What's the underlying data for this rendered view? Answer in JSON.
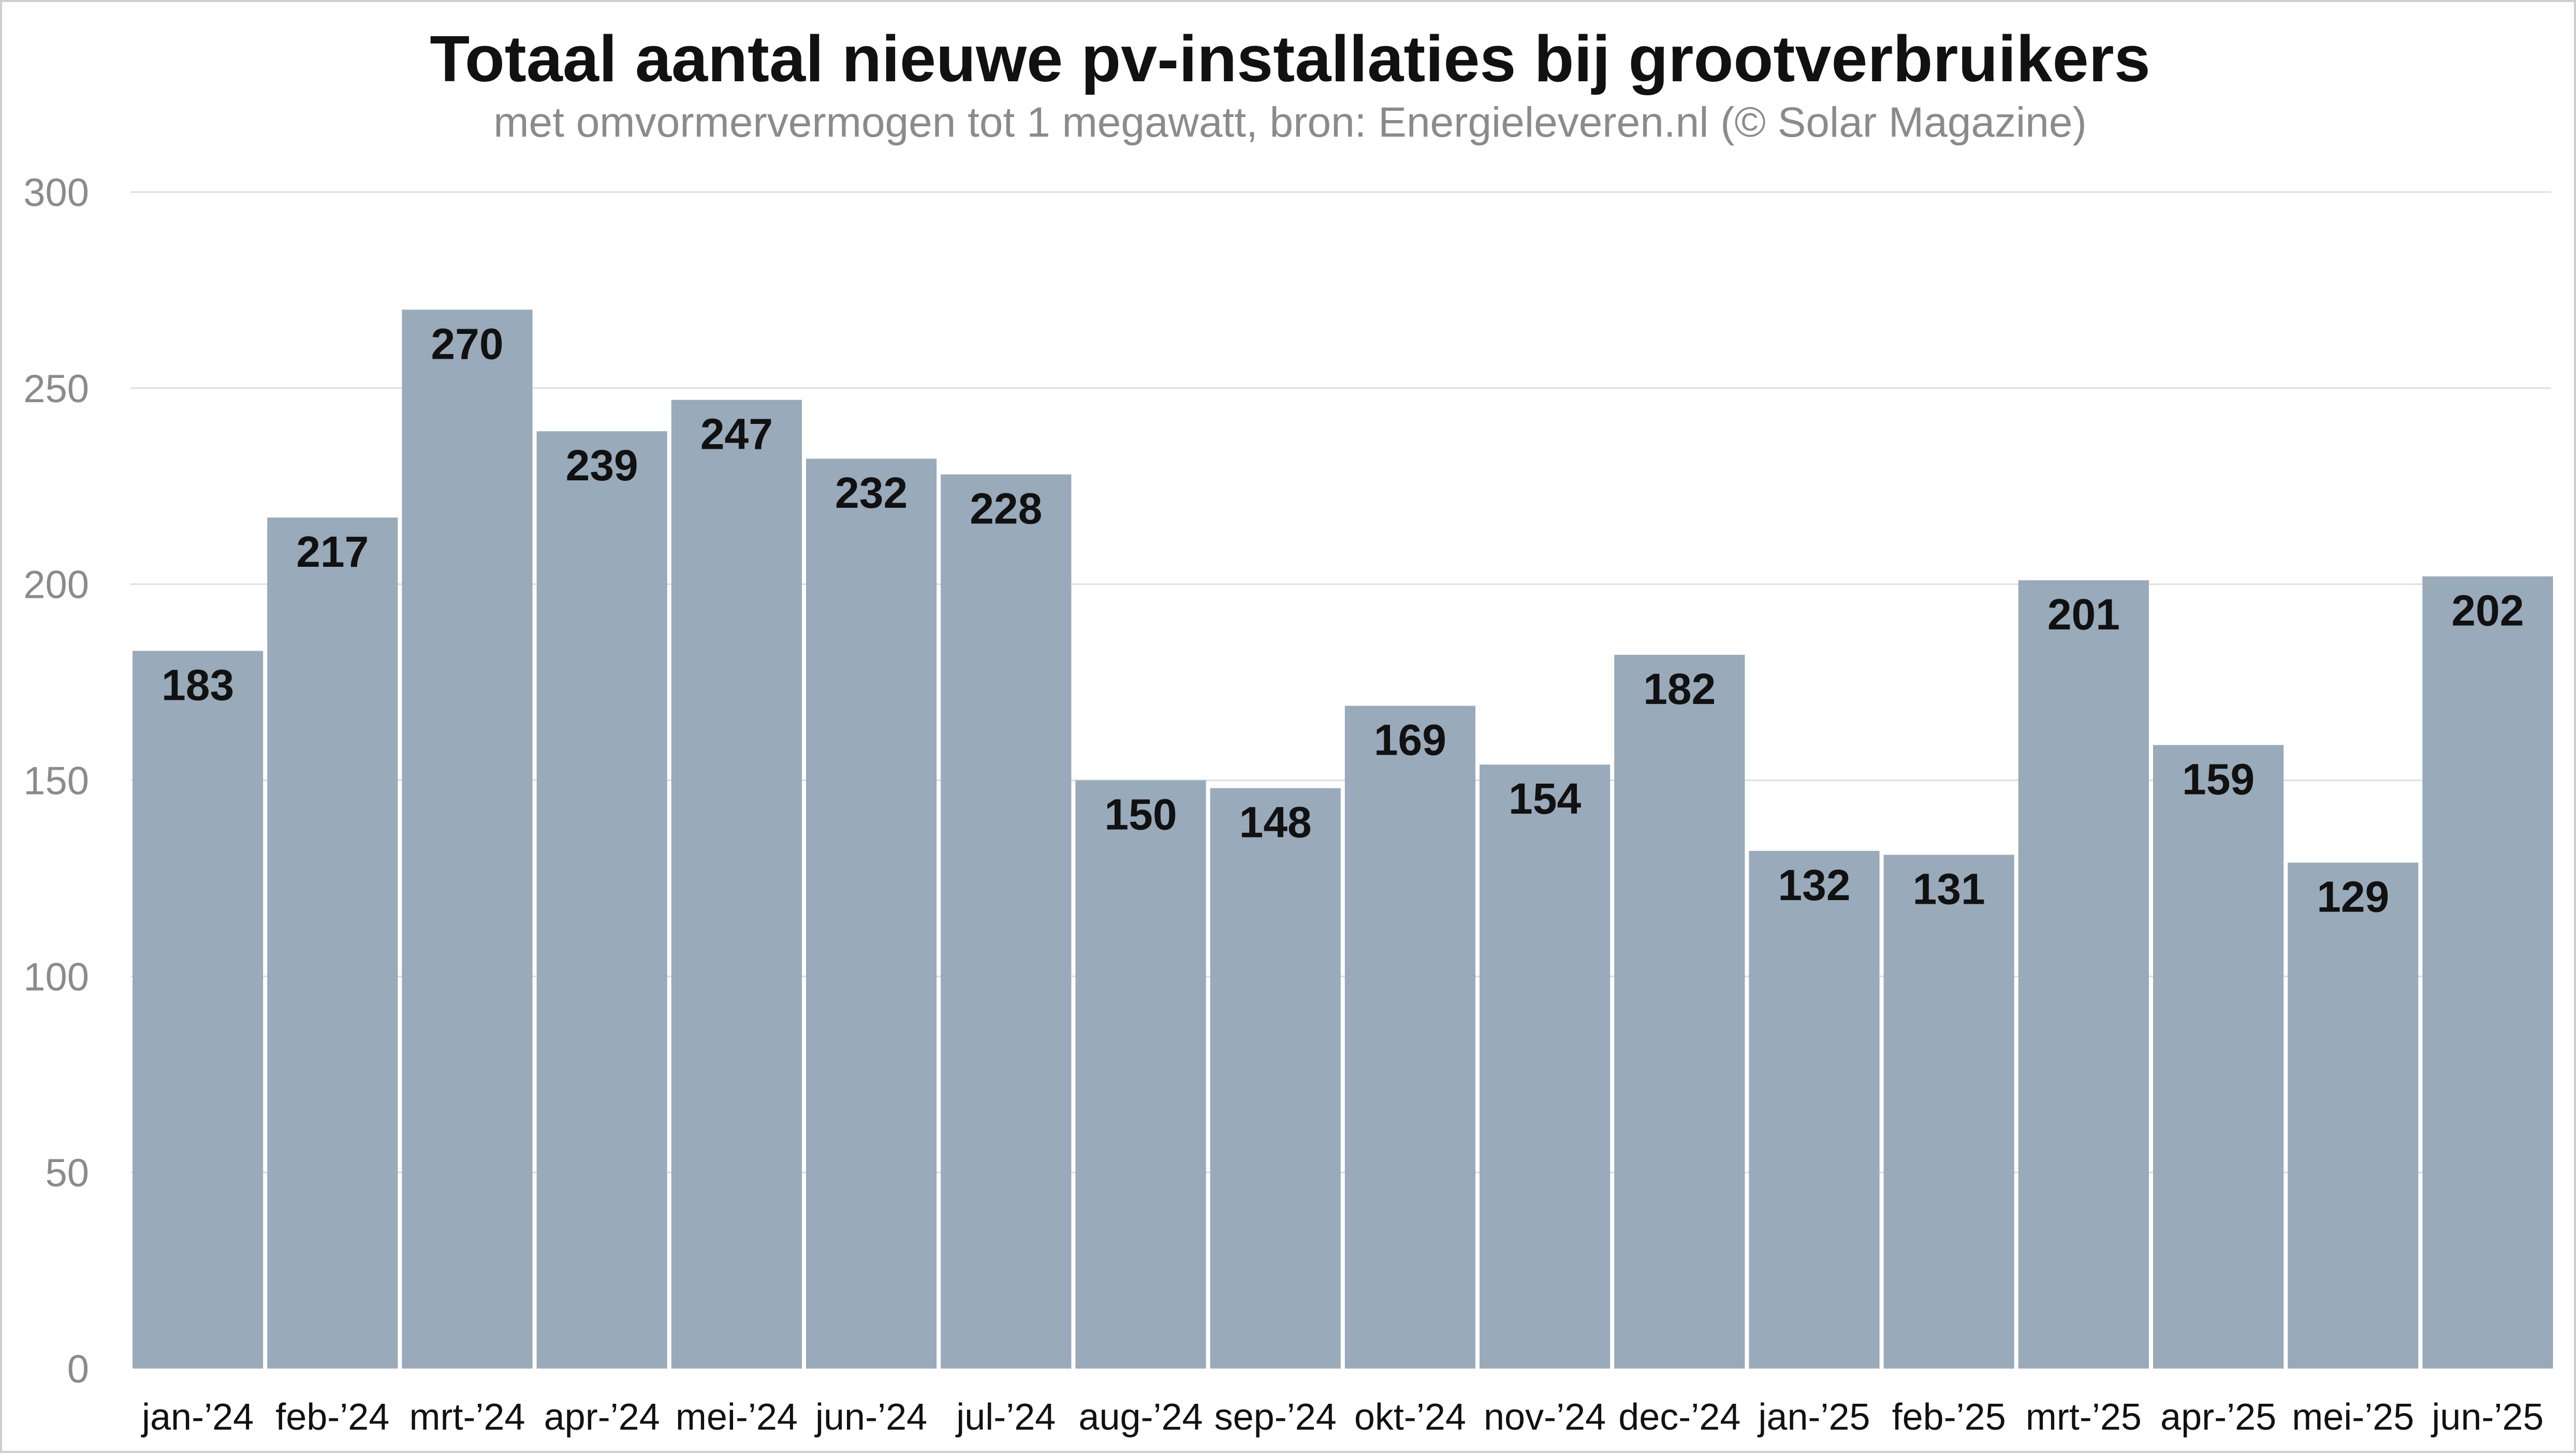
{
  "chart_data": {
    "type": "bar",
    "title": "Totaal aantal nieuwe pv-installaties bij grootverbruikers",
    "subtitle": "met omvormervermogen tot 1 megawatt, bron: Energieleveren.nl (© Solar Magazine)",
    "xlabel": "",
    "ylabel": "",
    "ylim": [
      0,
      300
    ],
    "yticks": [
      0,
      50,
      100,
      150,
      200,
      250,
      300
    ],
    "grid": true,
    "legend": "none",
    "categories": [
      "jan-’24",
      "feb-’24",
      "mrt-’24",
      "apr-’24",
      "mei-’24",
      "jun-’24",
      "jul-’24",
      "aug-’24",
      "sep-’24",
      "okt-’24",
      "nov-’24",
      "dec-’24",
      "jan-’25",
      "feb-’25",
      "mrt-’25",
      "apr-’25",
      "mei-’25",
      "jun-’25"
    ],
    "values": [
      183,
      217,
      270,
      239,
      247,
      232,
      228,
      150,
      148,
      169,
      154,
      182,
      132,
      131,
      201,
      159,
      129,
      202
    ],
    "colors": {
      "bar": "#99aaba",
      "label": "#111111",
      "tick": "#8b8b8b",
      "grid": "#dedede"
    }
  }
}
